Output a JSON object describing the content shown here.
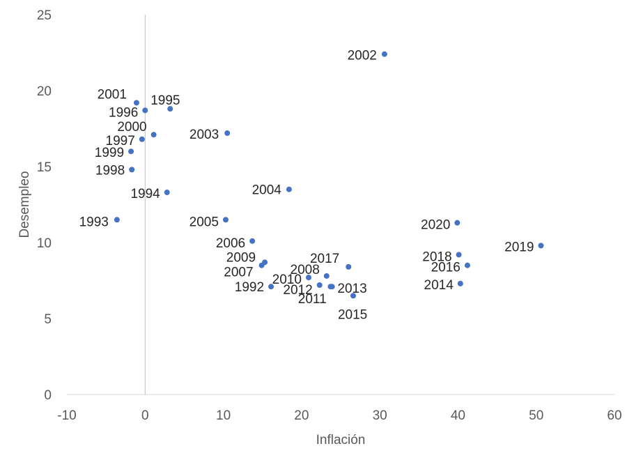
{
  "chart_data": {
    "type": "scatter",
    "xlabel": "Inflación",
    "ylabel": "Desempleo",
    "xlim": [
      -10,
      60
    ],
    "ylim": [
      0,
      25
    ],
    "x_ticks": [
      "-10",
      "0",
      "10",
      "20",
      "30",
      "40",
      "50",
      "60"
    ],
    "y_ticks": [
      "0",
      "5",
      "10",
      "15",
      "20",
      "25"
    ],
    "grid": false,
    "legend": "none",
    "marker_color": "#4472C4",
    "points": [
      {
        "label": "1992",
        "x": 16.1,
        "y": 7.1
      },
      {
        "label": "1993",
        "x": -3.6,
        "y": 11.5
      },
      {
        "label": "1994",
        "x": 2.8,
        "y": 13.3
      },
      {
        "label": "1995",
        "x": 3.2,
        "y": 18.8
      },
      {
        "label": "1996",
        "x": 0.0,
        "y": 18.7
      },
      {
        "label": "1997",
        "x": -0.4,
        "y": 16.8
      },
      {
        "label": "1998",
        "x": -1.7,
        "y": 14.8
      },
      {
        "label": "1999",
        "x": -1.8,
        "y": 16.0
      },
      {
        "label": "2000",
        "x": 1.1,
        "y": 17.1
      },
      {
        "label": "2001",
        "x": -1.1,
        "y": 19.2
      },
      {
        "label": "2002",
        "x": 30.6,
        "y": 22.4
      },
      {
        "label": "2003",
        "x": 10.5,
        "y": 17.2
      },
      {
        "label": "2004",
        "x": 18.4,
        "y": 13.5
      },
      {
        "label": "2005",
        "x": 10.3,
        "y": 11.5
      },
      {
        "label": "2006",
        "x": 13.7,
        "y": 10.1
      },
      {
        "label": "2007",
        "x": 14.9,
        "y": 8.5
      },
      {
        "label": "2008",
        "x": 23.2,
        "y": 7.8
      },
      {
        "label": "2009",
        "x": 15.3,
        "y": 8.7
      },
      {
        "label": "2010",
        "x": 20.9,
        "y": 7.7
      },
      {
        "label": "2011",
        "x": 23.9,
        "y": 7.1
      },
      {
        "label": "2012",
        "x": 22.3,
        "y": 7.2
      },
      {
        "label": "2013",
        "x": 23.7,
        "y": 7.1
      },
      {
        "label": "2014",
        "x": 40.3,
        "y": 7.3
      },
      {
        "label": "2015",
        "x": 26.6,
        "y": 6.5
      },
      {
        "label": "2016",
        "x": 41.2,
        "y": 8.5
      },
      {
        "label": "2017",
        "x": 26.0,
        "y": 8.4
      },
      {
        "label": "2018",
        "x": 40.1,
        "y": 9.2
      },
      {
        "label": "2019",
        "x": 50.6,
        "y": 9.8
      },
      {
        "label": "2020",
        "x": 39.9,
        "y": 11.3
      }
    ]
  }
}
